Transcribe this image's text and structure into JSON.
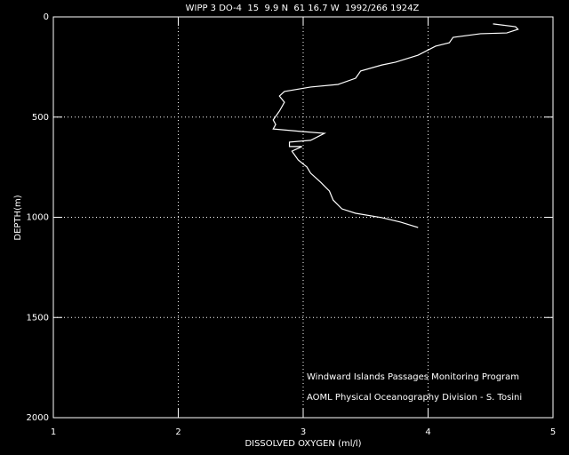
{
  "chart_data": {
    "type": "line",
    "title": "WIPP 3 DO-4  15  9.9 N  61 16.7 W  1992/266 1924Z",
    "x_label": "DISSOLVED OXYGEN (ml/l)",
    "y_label": "DEPTH(m)",
    "annotations": [
      "Windward Islands Passages Monitoring Program",
      "AOML Physical Oceanography Division - S. Tosini"
    ],
    "color": "#ffffff",
    "background": "#000000",
    "grid": true,
    "xlim": [
      1,
      5
    ],
    "xticks": [
      1,
      2,
      3,
      4,
      5
    ],
    "ylim": [
      2000,
      0
    ],
    "yticks": [
      0,
      500,
      1000,
      1500,
      2000
    ],
    "x": [
      4.52,
      4.7,
      4.72,
      4.63,
      4.42,
      4.2,
      4.17,
      4.06,
      3.92,
      3.74,
      3.63,
      3.46,
      3.42,
      3.28,
      3.06,
      2.85,
      2.81,
      2.85,
      2.81,
      2.76,
      2.78,
      2.76,
      2.99,
      3.17,
      3.06,
      2.89,
      2.89,
      2.99,
      2.91,
      2.96,
      3.03,
      3.06,
      3.14,
      3.21,
      3.24,
      3.31,
      3.42,
      3.63,
      3.78,
      3.92
    ],
    "y": [
      35,
      49,
      62,
      80,
      84,
      102,
      129,
      146,
      191,
      226,
      240,
      270,
      306,
      337,
      350,
      372,
      395,
      426,
      470,
      514,
      537,
      559,
      572,
      581,
      616,
      625,
      647,
      647,
      670,
      714,
      749,
      780,
      825,
      869,
      914,
      958,
      980,
      1002,
      1024,
      1051
    ]
  }
}
